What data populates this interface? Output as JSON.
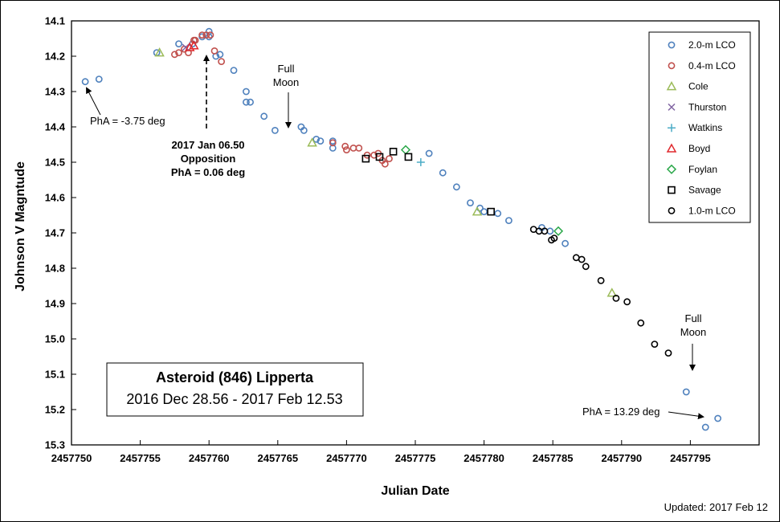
{
  "chart_data": {
    "type": "scatter",
    "xlabel": "Julian Date",
    "ylabel": "Johnson V Magntude",
    "xlim": [
      2457750,
      2457800
    ],
    "ylim": [
      14.1,
      15.3
    ],
    "y_inverted": true,
    "x_ticks": [
      "2457750",
      "2457755",
      "2457760",
      "2457765",
      "2457770",
      "2457775",
      "2457780",
      "2457785",
      "2457790",
      "2457795"
    ],
    "y_ticks": [
      "14.1",
      "14.2",
      "14.3",
      "14.4",
      "14.5",
      "14.6",
      "14.7",
      "14.8",
      "14.9",
      "15.0",
      "15.1",
      "15.2",
      "15.3"
    ],
    "grid": false,
    "legend_position": "top-right",
    "title_box": {
      "line1": "Asteroid (846) Lipperta",
      "line2": "2016 Dec 28.56 - 2017 Feb 12.53"
    },
    "footer": "Updated: 2017 Feb 12",
    "annotations": {
      "pha_start": "PhA = -3.75 deg",
      "opposition_line1": "2017 Jan 06.50",
      "opposition_line2": "Opposition",
      "opposition_line3": "PhA = 0.06 deg",
      "full_moon1_line1": "Full",
      "full_moon1_line2": "Moon",
      "full_moon2_line1": "Full",
      "full_moon2_line2": "Moon",
      "pha_end": "PhA = 13.29 deg"
    },
    "series": [
      {
        "name": "2.0-m LCO",
        "marker": "circle",
        "color": "#4F81BD",
        "points": [
          [
            2457751.0,
            14.272
          ],
          [
            2457752.0,
            14.265
          ],
          [
            2457756.2,
            14.19
          ],
          [
            2457757.8,
            14.165
          ],
          [
            2457758.8,
            14.165
          ],
          [
            2457759.5,
            14.145
          ],
          [
            2457760.0,
            14.13
          ],
          [
            2457760.0,
            14.145
          ],
          [
            2457760.5,
            14.2
          ],
          [
            2457760.8,
            14.195
          ],
          [
            2457761.8,
            14.24
          ],
          [
            2457762.7,
            14.3
          ],
          [
            2457762.7,
            14.33
          ],
          [
            2457763.0,
            14.33
          ],
          [
            2457764.0,
            14.37
          ],
          [
            2457764.8,
            14.41
          ],
          [
            2457766.7,
            14.4
          ],
          [
            2457766.9,
            14.41
          ],
          [
            2457767.8,
            14.435
          ],
          [
            2457768.1,
            14.44
          ],
          [
            2457769.0,
            14.46
          ],
          [
            2457769.0,
            14.44
          ],
          [
            2457776.0,
            14.475
          ],
          [
            2457777.0,
            14.53
          ],
          [
            2457778.0,
            14.57
          ],
          [
            2457779.0,
            14.615
          ],
          [
            2457779.7,
            14.63
          ],
          [
            2457780.0,
            14.64
          ],
          [
            2457781.0,
            14.645
          ],
          [
            2457781.8,
            14.665
          ],
          [
            2457784.2,
            14.685
          ],
          [
            2457784.8,
            14.695
          ],
          [
            2457785.9,
            14.73
          ],
          [
            2457794.7,
            15.15
          ],
          [
            2457796.1,
            15.25
          ],
          [
            2457797.0,
            15.225
          ]
        ]
      },
      {
        "name": "0.4-m LCO",
        "marker": "circle",
        "color": "#C0504D",
        "points": [
          [
            2457757.5,
            14.195
          ],
          [
            2457757.8,
            14.19
          ],
          [
            2457758.2,
            14.18
          ],
          [
            2457758.5,
            14.19
          ],
          [
            2457758.9,
            14.155
          ],
          [
            2457759.0,
            14.155
          ],
          [
            2457759.5,
            14.14
          ],
          [
            2457759.8,
            14.14
          ],
          [
            2457760.1,
            14.14
          ],
          [
            2457760.4,
            14.185
          ],
          [
            2457760.9,
            14.215
          ],
          [
            2457769.0,
            14.445
          ],
          [
            2457769.9,
            14.455
          ],
          [
            2457770.0,
            14.465
          ],
          [
            2457770.5,
            14.46
          ],
          [
            2457770.9,
            14.46
          ],
          [
            2457771.5,
            14.48
          ],
          [
            2457772.0,
            14.48
          ],
          [
            2457772.3,
            14.475
          ],
          [
            2457772.6,
            14.495
          ],
          [
            2457772.8,
            14.505
          ],
          [
            2457773.1,
            14.49
          ]
        ]
      },
      {
        "name": "Cole",
        "marker": "triangle",
        "color": "#9BBB59",
        "points": [
          [
            2457756.4,
            14.19
          ],
          [
            2457767.5,
            14.445
          ],
          [
            2457779.5,
            14.64
          ],
          [
            2457789.3,
            14.87
          ]
        ]
      },
      {
        "name": "Thurston",
        "marker": "x",
        "color": "#8064A2",
        "points": [
          [
            2457758.3,
            14.175
          ]
        ]
      },
      {
        "name": "Watkins",
        "marker": "plus",
        "color": "#4BACC6",
        "points": [
          [
            2457775.4,
            14.5
          ]
        ]
      },
      {
        "name": "Boyd",
        "marker": "triangle",
        "color": "#E0282D",
        "points": [
          [
            2457758.6,
            14.175
          ],
          [
            2457758.9,
            14.17
          ]
        ]
      },
      {
        "name": "Foylan",
        "marker": "diamond",
        "color": "#2BA84A",
        "points": [
          [
            2457774.3,
            14.465
          ],
          [
            2457785.4,
            14.695
          ]
        ]
      },
      {
        "name": "Savage",
        "marker": "square",
        "color": "#000000",
        "points": [
          [
            2457771.4,
            14.49
          ],
          [
            2457772.4,
            14.485
          ],
          [
            2457773.4,
            14.47
          ],
          [
            2457774.5,
            14.485
          ],
          [
            2457780.5,
            14.64
          ]
        ]
      },
      {
        "name": "1.0-m LCO",
        "marker": "circle",
        "color": "#000000",
        "points": [
          [
            2457783.6,
            14.69
          ],
          [
            2457784.0,
            14.695
          ],
          [
            2457784.4,
            14.695
          ],
          [
            2457784.9,
            14.72
          ],
          [
            2457785.1,
            14.715
          ],
          [
            2457786.7,
            14.77
          ],
          [
            2457787.1,
            14.775
          ],
          [
            2457787.4,
            14.795
          ],
          [
            2457788.5,
            14.835
          ],
          [
            2457789.6,
            14.885
          ],
          [
            2457790.4,
            14.895
          ],
          [
            2457791.4,
            14.955
          ],
          [
            2457792.4,
            15.015
          ],
          [
            2457793.4,
            15.04
          ]
        ]
      }
    ]
  }
}
